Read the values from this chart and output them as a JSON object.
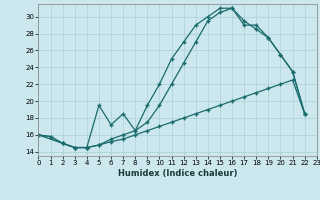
{
  "xlabel": "Humidex (Indice chaleur)",
  "bg_color": "#cce8ee",
  "grid_color": "#aad0d8",
  "line_color": "#1a6b6b",
  "line1_x": [
    0,
    1,
    2,
    3,
    4,
    5,
    6,
    7,
    8,
    9,
    10,
    11,
    12,
    13,
    14,
    15,
    16,
    17,
    18,
    19,
    20,
    21,
    22
  ],
  "line1_y": [
    16,
    15.8,
    15,
    14.5,
    14.5,
    19.5,
    17.2,
    18.5,
    16.5,
    19.5,
    22,
    25,
    27,
    29,
    30,
    31,
    31,
    29,
    29,
    27.5,
    25.5,
    23.5,
    18.5
  ],
  "line2_x": [
    0,
    1,
    2,
    3,
    4,
    5,
    6,
    7,
    8,
    9,
    10,
    11,
    12,
    13,
    14,
    15,
    16,
    17,
    18,
    19,
    20,
    21,
    22
  ],
  "line2_y": [
    16,
    15.8,
    15,
    14.5,
    14.5,
    14.8,
    15.2,
    15.5,
    16.0,
    16.5,
    17.0,
    17.5,
    18.0,
    18.5,
    19.0,
    19.5,
    20.0,
    20.5,
    21.0,
    21.5,
    22.0,
    22.5,
    18.5
  ],
  "line3_x": [
    0,
    2,
    3,
    4,
    5,
    6,
    7,
    8,
    9,
    10,
    11,
    12,
    13,
    14,
    15,
    16,
    17,
    18,
    19,
    20,
    21,
    22
  ],
  "line3_y": [
    16,
    15,
    14.5,
    14.5,
    14.8,
    15.5,
    16.0,
    16.5,
    17.5,
    19.5,
    22.0,
    24.5,
    27.0,
    29.5,
    30.5,
    31.0,
    29.5,
    28.5,
    27.5,
    25.5,
    23.5,
    18.5
  ],
  "ylim": [
    13.5,
    31.5
  ],
  "xlim": [
    0,
    23
  ],
  "yticks": [
    14,
    16,
    18,
    20,
    22,
    24,
    26,
    28,
    30
  ],
  "xticks": [
    0,
    1,
    2,
    3,
    4,
    5,
    6,
    7,
    8,
    9,
    10,
    11,
    12,
    13,
    14,
    15,
    16,
    17,
    18,
    19,
    20,
    21,
    22,
    23
  ]
}
